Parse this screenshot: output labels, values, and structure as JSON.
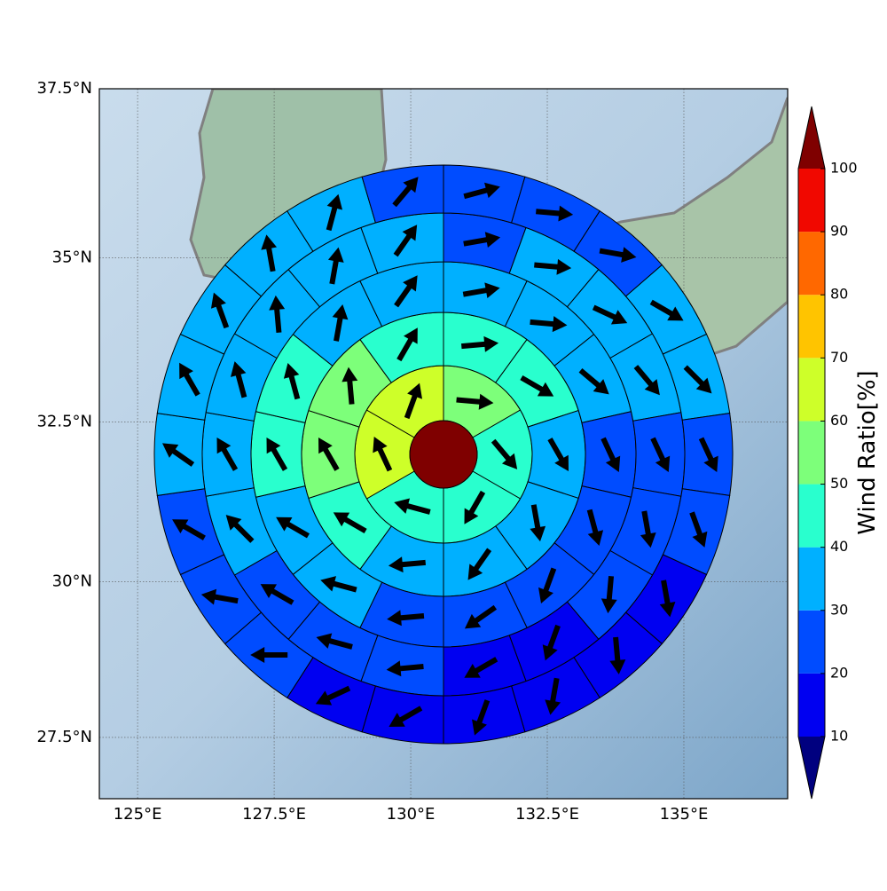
{
  "chart_data": {
    "type": "polar-sector",
    "xlim": [
      124.3,
      136.9
    ],
    "ylim": [
      26.5,
      37.5
    ],
    "xticks": [
      {
        "value": 125,
        "label": "125°E"
      },
      {
        "value": 127.5,
        "label": "127.5°E"
      },
      {
        "value": 130,
        "label": "130°E"
      },
      {
        "value": 132.5,
        "label": "132.5°E"
      },
      {
        "value": 135,
        "label": "135°E"
      }
    ],
    "yticks": [
      {
        "value": 27.5,
        "label": "27.5°N"
      },
      {
        "value": 30,
        "label": "30°N"
      },
      {
        "value": 32.5,
        "label": "32.5°N"
      },
      {
        "value": 35,
        "label": "35°N"
      },
      {
        "value": 37.5,
        "label": "37.5°N"
      }
    ],
    "grid": true,
    "center_value": 100,
    "rings": [
      {
        "values": [
          55,
          45,
          45,
          45,
          65,
          65
        ],
        "directions": [
          95,
          140,
          210,
          285,
          335,
          20
        ]
      },
      {
        "values": [
          45,
          45,
          35,
          35,
          35,
          35,
          45,
          55,
          55,
          45
        ],
        "directions": [
          85,
          120,
          150,
          170,
          215,
          265,
          300,
          330,
          355,
          30
        ]
      },
      {
        "values": [
          35,
          35,
          35,
          25,
          25,
          25,
          25,
          25,
          35,
          35,
          45,
          45,
          35,
          35
        ],
        "directions": [
          80,
          95,
          130,
          155,
          165,
          200,
          235,
          265,
          285,
          300,
          330,
          345,
          10,
          35
        ]
      },
      {
        "values": [
          25,
          35,
          35,
          35,
          25,
          25,
          25,
          15,
          15,
          25,
          25,
          25,
          35,
          35,
          35,
          35,
          35,
          35
        ],
        "directions": [
          80,
          95,
          115,
          140,
          155,
          170,
          185,
          200,
          240,
          265,
          285,
          300,
          315,
          330,
          345,
          355,
          10,
          35
        ]
      },
      {
        "values": [
          25,
          25,
          25,
          35,
          35,
          25,
          25,
          15,
          15,
          15,
          15,
          15,
          15,
          25,
          25,
          25,
          35,
          35,
          35,
          35,
          35,
          25
        ],
        "directions": [
          75,
          95,
          100,
          120,
          135,
          155,
          160,
          170,
          175,
          190,
          200,
          240,
          245,
          270,
          280,
          300,
          305,
          330,
          340,
          350,
          15,
          40
        ]
      }
    ],
    "colorbar": {
      "label": "Wind Ratio[%]",
      "levels": [
        10,
        20,
        30,
        40,
        50,
        60,
        70,
        80,
        90,
        100
      ],
      "colors": [
        "#00007f",
        "#0000f1",
        "#004cff",
        "#00b0ff",
        "#29ffce",
        "#7dff7a",
        "#ceff29",
        "#ffc400",
        "#ff6800",
        "#f10800",
        "#7f0000"
      ]
    }
  }
}
